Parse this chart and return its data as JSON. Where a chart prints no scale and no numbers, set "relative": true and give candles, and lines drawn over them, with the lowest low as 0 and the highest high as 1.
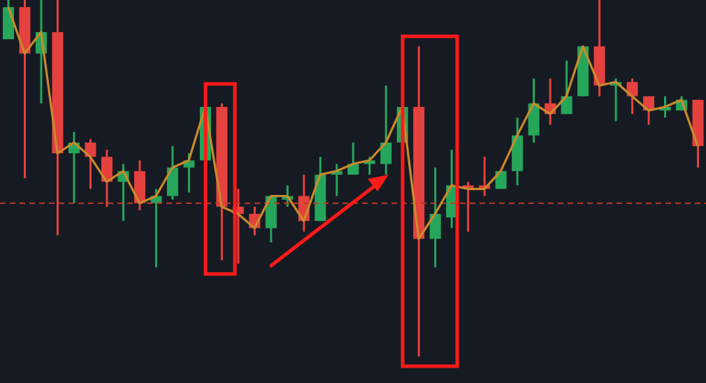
{
  "chart_data": {
    "type": "candlestick",
    "relative": true,
    "tick_labels": false,
    "categories": [
      null,
      null,
      null,
      null,
      null,
      null,
      null,
      null,
      null,
      null,
      null,
      null,
      null,
      null,
      null,
      null,
      null,
      null,
      null,
      null,
      null,
      null,
      null,
      null,
      null,
      null,
      null,
      null,
      null,
      null,
      null,
      null,
      null,
      null,
      null,
      null,
      null,
      null,
      null,
      null,
      null,
      null,
      null
    ],
    "ohlc": [
      [
        0.89,
        1,
        0.89,
        0.98
      ],
      [
        0.98,
        1,
        0.5,
        0.85
      ],
      [
        0.85,
        1,
        0.71,
        0.91
      ],
      [
        0.91,
        1,
        0.34,
        0.57
      ],
      [
        0.57,
        0.63,
        0.43,
        0.6
      ],
      [
        0.6,
        0.61,
        0.47,
        0.56
      ],
      [
        0.56,
        0.58,
        0.42,
        0.49
      ],
      [
        0.49,
        0.54,
        0.38,
        0.52
      ],
      [
        0.52,
        0.55,
        0.41,
        0.43
      ],
      [
        0.43,
        0.47,
        0.25,
        0.45
      ],
      [
        0.45,
        0.59,
        0.44,
        0.53
      ],
      [
        0.53,
        0.57,
        0.46,
        0.55
      ],
      [
        0.55,
        0.7,
        0.55,
        0.7
      ],
      [
        0.7,
        0.71,
        0.27,
        0.42
      ],
      [
        0.42,
        0.47,
        0.26,
        0.4
      ],
      [
        0.4,
        0.42,
        0.34,
        0.36
      ],
      [
        0.36,
        0.45,
        0.32,
        0.45
      ],
      [
        0.44,
        0.48,
        0.42,
        0.45
      ],
      [
        0.45,
        0.51,
        0.35,
        0.38
      ],
      [
        0.38,
        0.56,
        0.38,
        0.51
      ],
      [
        0.51,
        0.54,
        0.45,
        0.52
      ],
      [
        0.51,
        0.6,
        0.51,
        0.54
      ],
      [
        0.54,
        0.56,
        0.51,
        0.55
      ],
      [
        0.54,
        0.76,
        0.51,
        0.6
      ],
      [
        0.6,
        0.7,
        0.6,
        0.7
      ],
      [
        0.7,
        0.87,
        0,
        0.33
      ],
      [
        0.33,
        0.53,
        0.25,
        0.4
      ],
      [
        0.39,
        0.58,
        0.36,
        0.48
      ],
      [
        0.48,
        0.49,
        0.35,
        0.47
      ],
      [
        0.48,
        0.56,
        0.45,
        0.47
      ],
      [
        0.47,
        0.52,
        0.47,
        0.52
      ],
      [
        0.52,
        0.67,
        0.48,
        0.62
      ],
      [
        0.62,
        0.78,
        0.6,
        0.71
      ],
      [
        0.71,
        0.78,
        0.65,
        0.68
      ],
      [
        0.68,
        0.83,
        0.68,
        0.73
      ],
      [
        0.73,
        0.87,
        0.73,
        0.87
      ],
      [
        0.87,
        1,
        0.73,
        0.76
      ],
      [
        0.76,
        0.78,
        0.66,
        0.77
      ],
      [
        0.77,
        0.78,
        0.68,
        0.73
      ],
      [
        0.73,
        0.73,
        0.65,
        0.69
      ],
      [
        0.69,
        0.73,
        0.67,
        0.7
      ],
      [
        0.69,
        0.73,
        0.69,
        0.72
      ],
      [
        0.72,
        0.72,
        0.53,
        0.59
      ]
    ],
    "colors": [
      "#26a65b",
      "#e5413f",
      "#26a65b",
      "#e5413f",
      "#26a65b",
      "#e5413f",
      "#e5413f",
      "#26a65b",
      "#e5413f",
      "#26a65b",
      "#26a65b",
      "#26a65b",
      "#26a65b",
      "#e5413f",
      "#e5413f",
      "#e5413f",
      "#26a65b",
      "#26a65b",
      "#e5413f",
      "#26a65b",
      "#26a65b",
      "#26a65b",
      "#26a65b",
      "#26a65b",
      "#26a65b",
      "#e5413f",
      "#26a65b",
      "#26a65b",
      "#e5413f",
      "#e5413f",
      "#26a65b",
      "#26a65b",
      "#26a65b",
      "#e5413f",
      "#26a65b",
      "#26a65b",
      "#e5413f",
      "#26a65b",
      "#e5413f",
      "#e5413f",
      "#26a65b",
      "#26a65b",
      "#e5413f"
    ],
    "series": [
      {
        "type": "line",
        "color": "#c98a2b",
        "values": [
          0.98,
          0.85,
          0.91,
          0.57,
          0.6,
          0.56,
          0.49,
          0.52,
          0.43,
          0.45,
          0.53,
          0.55,
          0.7,
          0.42,
          0.4,
          0.36,
          0.45,
          0.45,
          0.38,
          0.51,
          0.52,
          0.54,
          0.55,
          0.6,
          0.7,
          0.33,
          0.4,
          0.48,
          0.47,
          0.47,
          0.52,
          0.62,
          0.71,
          0.68,
          0.73,
          0.87,
          0.76,
          0.77,
          0.73,
          0.69,
          0.7,
          0.72,
          0.59
        ]
      }
    ],
    "ref_lines": [
      {
        "axis": "y",
        "value": 0.43,
        "color": "#c0392b",
        "line_style": "dashed"
      }
    ]
  }
}
